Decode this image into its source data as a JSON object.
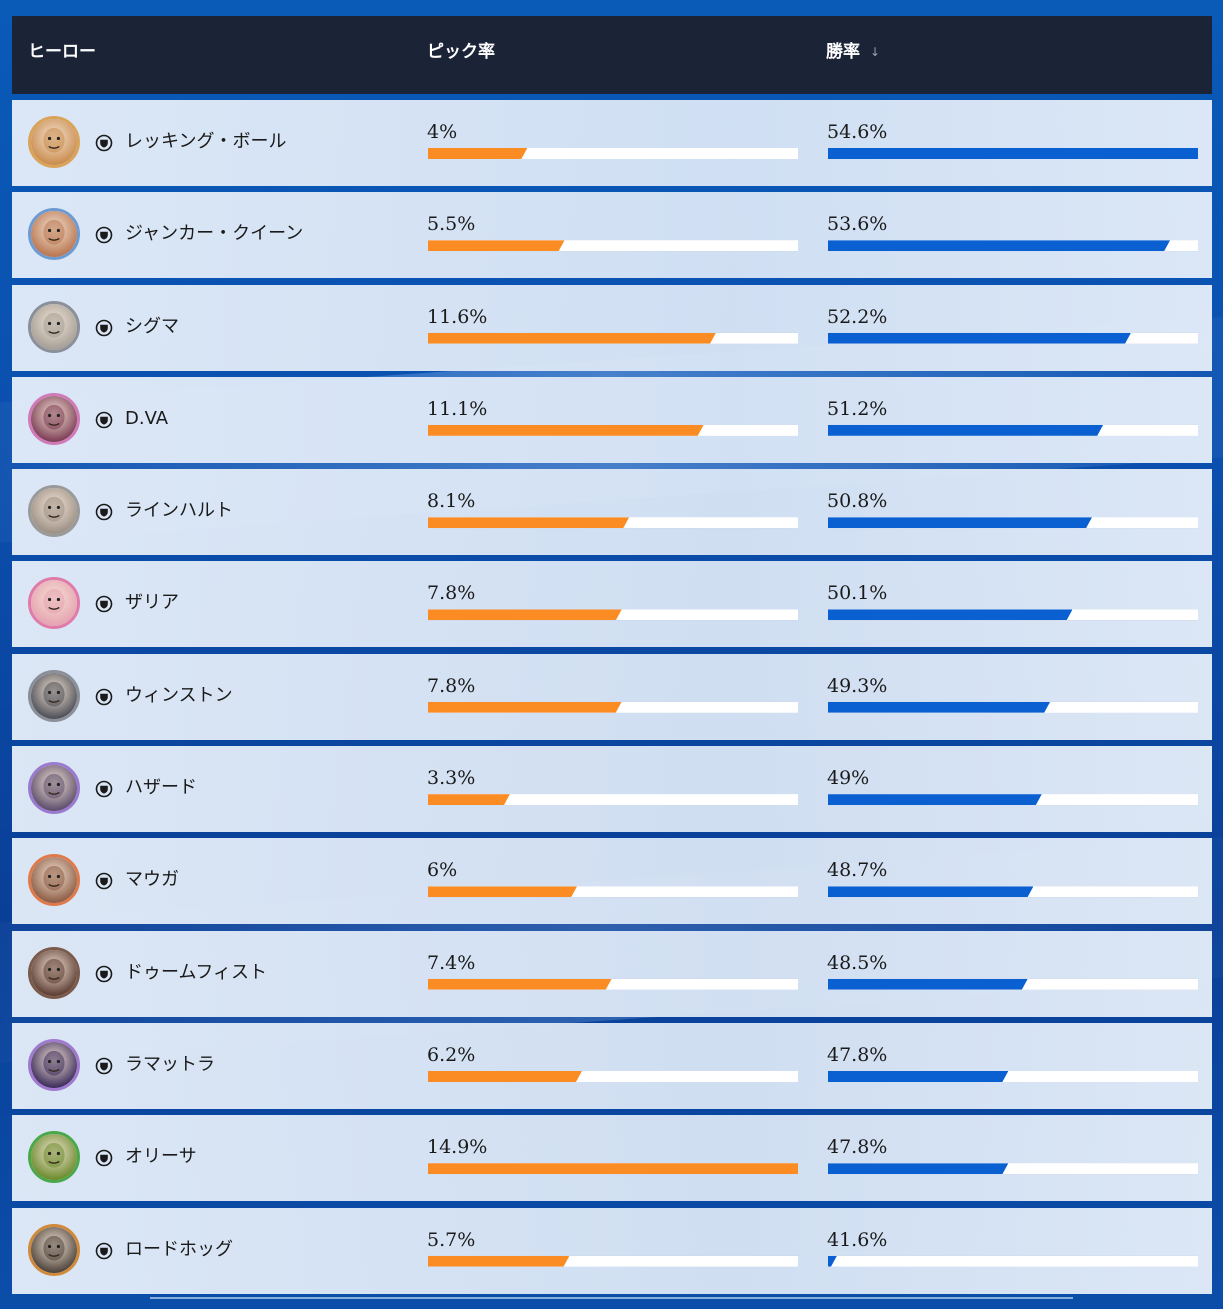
{
  "header": {
    "hero_label": "ヒーロー",
    "pick_label": "ピック率",
    "win_label": "勝率",
    "sort_icon": "sort-arrow-down-icon"
  },
  "colors": {
    "header_bg": "#1b2437",
    "pick_bar": "#fb8c24",
    "win_bar": "#0a5fd1",
    "bar_track": "#ffffff",
    "row_bg": "#e2ecf8",
    "page_bg": "#0b4fae"
  },
  "scales": {
    "pick_max_pct": 14.9,
    "win_min_pct": 41.6,
    "win_max_pct": 54.6
  },
  "rows": [
    {
      "hero": "レッキング・ボール",
      "role_icon": "tank-role-icon",
      "pick_rate": "4%",
      "pick_value": 4.0,
      "win_rate": "54.6%",
      "win_value": 54.6,
      "portrait_color": "#c98a4a",
      "portrait_ring": "#d9a35a"
    },
    {
      "hero": "ジャンカー・クイーン",
      "role_icon": "tank-role-icon",
      "pick_rate": "5.5%",
      "pick_value": 5.5,
      "win_rate": "53.6%",
      "win_value": 53.6,
      "portrait_color": "#b8744e",
      "portrait_ring": "#6d9bd1"
    },
    {
      "hero": "シグマ",
      "role_icon": "tank-role-icon",
      "pick_rate": "11.6%",
      "pick_value": 11.6,
      "win_rate": "52.2%",
      "win_value": 52.2,
      "portrait_color": "#a39d95",
      "portrait_ring": "#8a8f99"
    },
    {
      "hero": "D.VA",
      "role_icon": "tank-role-icon",
      "pick_rate": "11.1%",
      "pick_value": 11.1,
      "win_rate": "51.2%",
      "win_value": 51.2,
      "portrait_color": "#7a3a52",
      "portrait_ring": "#d07ab8"
    },
    {
      "hero": "ラインハルト",
      "role_icon": "tank-role-icon",
      "pick_rate": "8.1%",
      "pick_value": 8.1,
      "win_rate": "50.8%",
      "win_value": 50.8,
      "portrait_color": "#9a8e84",
      "portrait_ring": "#9a9a9a"
    },
    {
      "hero": "ザリア",
      "role_icon": "tank-role-icon",
      "pick_rate": "7.8%",
      "pick_value": 7.8,
      "win_rate": "50.1%",
      "win_value": 50.1,
      "portrait_color": "#e6a0b0",
      "portrait_ring": "#e07aa8"
    },
    {
      "hero": "ウィンストン",
      "role_icon": "tank-role-icon",
      "pick_rate": "7.8%",
      "pick_value": 7.8,
      "win_rate": "49.3%",
      "win_value": 49.3,
      "portrait_color": "#4a4c55",
      "portrait_ring": "#8a8f99"
    },
    {
      "hero": "ハザード",
      "role_icon": "tank-role-icon",
      "pick_rate": "3.3%",
      "pick_value": 3.3,
      "win_rate": "49%",
      "win_value": 49.0,
      "portrait_color": "#5a4a6a",
      "portrait_ring": "#9a7ad0"
    },
    {
      "hero": "マウガ",
      "role_icon": "tank-role-icon",
      "pick_rate": "6%",
      "pick_value": 6.0,
      "win_rate": "48.7%",
      "win_value": 48.7,
      "portrait_color": "#8a5a42",
      "portrait_ring": "#e07a4a"
    },
    {
      "hero": "ドゥームフィスト",
      "role_icon": "tank-role-icon",
      "pick_rate": "7.4%",
      "pick_value": 7.4,
      "win_rate": "48.5%",
      "win_value": 48.5,
      "portrait_color": "#5a3a30",
      "portrait_ring": "#7a5a4a"
    },
    {
      "hero": "ラマットラ",
      "role_icon": "tank-role-icon",
      "pick_rate": "6.2%",
      "pick_value": 6.2,
      "win_rate": "47.8%",
      "win_value": 47.8,
      "portrait_color": "#3a2a5a",
      "portrait_ring": "#a07ad0"
    },
    {
      "hero": "オリーサ",
      "role_icon": "tank-role-icon",
      "pick_rate": "14.9%",
      "pick_value": 14.9,
      "win_rate": "47.8%",
      "win_value": 47.8,
      "portrait_color": "#6a8a2a",
      "portrait_ring": "#4aa84a"
    },
    {
      "hero": "ロードホッグ",
      "role_icon": "tank-role-icon",
      "pick_rate": "5.7%",
      "pick_value": 5.7,
      "win_rate": "41.6%",
      "win_value": 41.6,
      "portrait_color": "#4a4038",
      "portrait_ring": "#d08a3a"
    }
  ]
}
